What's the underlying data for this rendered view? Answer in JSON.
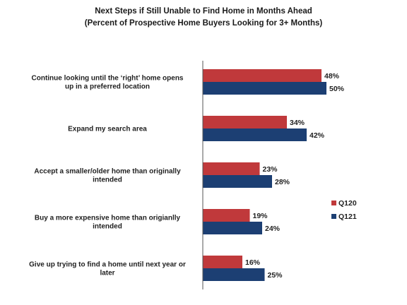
{
  "chart_data": {
    "type": "bar",
    "orientation": "horizontal",
    "title": "Next Steps if Still Unable to Find Home in Months Ahead",
    "subtitle": "(Percent of Prospective Home Buyers Looking for 3+ Months)",
    "categories": [
      [
        "Continue looking until the ‘right’ home opens",
        "up in a preferred location"
      ],
      [
        "Expand my search area"
      ],
      [
        "Accept a smaller/older home than originally",
        "intended"
      ],
      [
        "Buy a more expensive home than origianlly",
        "intended"
      ],
      [
        "Give up trying to find a home until next year or",
        "later"
      ]
    ],
    "series": [
      {
        "name": "Q120",
        "values": [
          48,
          34,
          23,
          19,
          16
        ],
        "labels": [
          "48%",
          "34%",
          "23%",
          "19%",
          "16%"
        ],
        "color": "#c0393b"
      },
      {
        "name": "Q121",
        "values": [
          50,
          42,
          28,
          24,
          25
        ],
        "labels": [
          "50%",
          "42%",
          "28%",
          "24%",
          "25%"
        ],
        "color": "#1c3f73"
      }
    ],
    "xlim": [
      0,
      60
    ],
    "grid": false,
    "legend_position": "right"
  }
}
